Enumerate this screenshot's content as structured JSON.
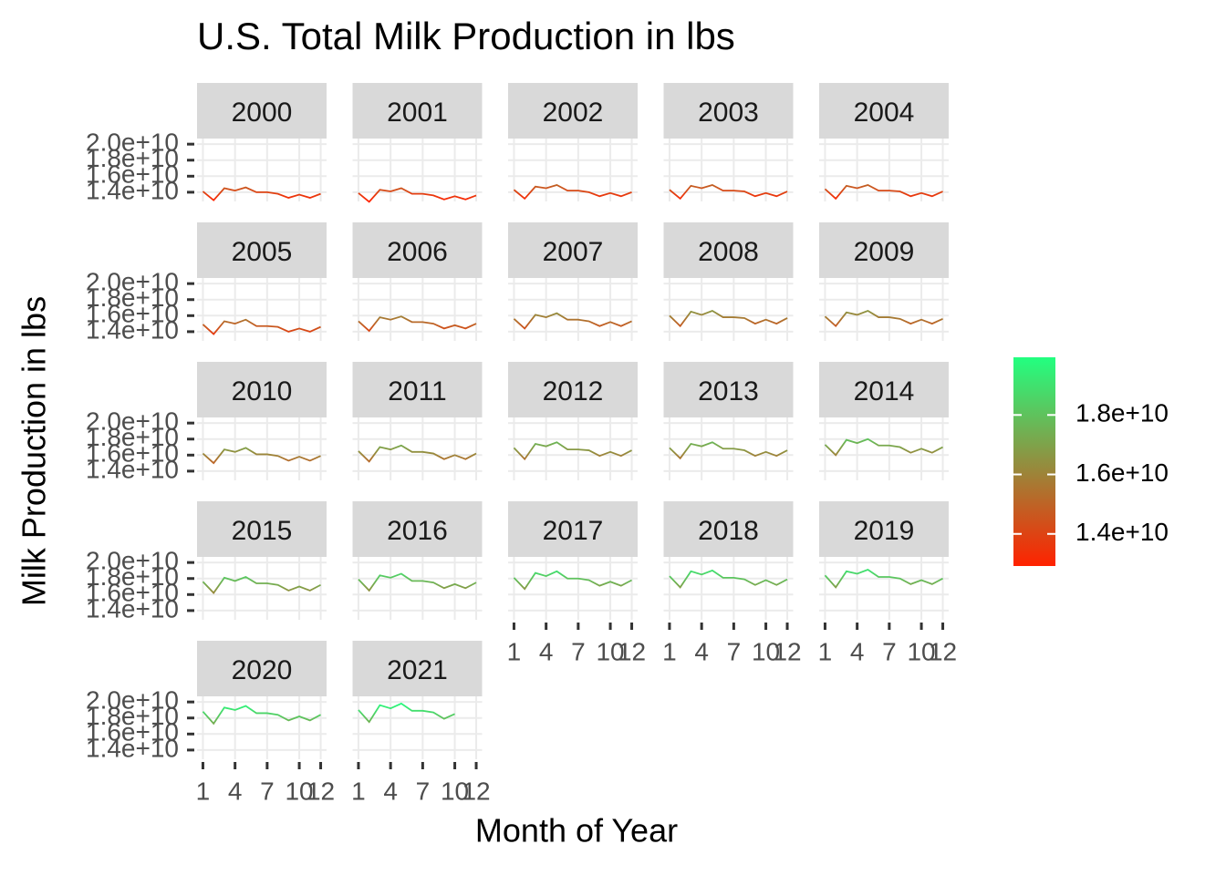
{
  "chart_data": {
    "type": "line",
    "title": "U.S. Total Milk Production in lbs",
    "xlabel": "Month of Year",
    "ylabel": "Milk Production in lbs",
    "x": [
      1,
      2,
      3,
      4,
      5,
      6,
      7,
      8,
      9,
      10,
      11,
      12
    ],
    "xlim": [
      0.45,
      12.55
    ],
    "xticks": [
      1,
      4,
      7,
      10,
      12
    ],
    "ylim": [
      12850000000.0,
      20700000000.0
    ],
    "yticks": [
      {
        "value": 14000000000.0,
        "label": "1.4e+10"
      },
      {
        "value": 16000000000.0,
        "label": "1.6e+10"
      },
      {
        "value": 18000000000.0,
        "label": "1.8e+10"
      },
      {
        "value": 20000000000.0,
        "label": "2.0e+10"
      }
    ],
    "grid": true,
    "colorbar": {
      "lim": [
        12920000000.0,
        19940000000.0
      ],
      "low": "#ff2200",
      "high": "#22ff80",
      "ticks": [
        {
          "value": 14000000000.0,
          "label": "1.4e+10"
        },
        {
          "value": 16000000000.0,
          "label": "1.6e+10"
        },
        {
          "value": 18000000000.0,
          "label": "1.8e+10"
        }
      ]
    },
    "facets": [
      {
        "name": "2000",
        "values": [
          14100000000.0,
          13000000000.0,
          14500000000.0,
          14200000000.0,
          14600000000.0,
          14000000000.0,
          14000000000.0,
          13800000000.0,
          13300000000.0,
          13700000000.0,
          13300000000.0,
          13800000000.0
        ]
      },
      {
        "name": "2001",
        "values": [
          13900000000.0,
          12800000000.0,
          14300000000.0,
          14100000000.0,
          14500000000.0,
          13800000000.0,
          13800000000.0,
          13600000000.0,
          13100000000.0,
          13500000000.0,
          13100000000.0,
          13600000000.0
        ]
      },
      {
        "name": "2002",
        "values": [
          14300000000.0,
          13200000000.0,
          14700000000.0,
          14500000000.0,
          14900000000.0,
          14200000000.0,
          14200000000.0,
          14000000000.0,
          13500000000.0,
          13900000000.0,
          13500000000.0,
          14000000000.0
        ]
      },
      {
        "name": "2003",
        "values": [
          14300000000.0,
          13200000000.0,
          14800000000.0,
          14500000000.0,
          14900000000.0,
          14200000000.0,
          14200000000.0,
          14100000000.0,
          13500000000.0,
          13900000000.0,
          13500000000.0,
          14100000000.0
        ]
      },
      {
        "name": "2004",
        "values": [
          14400000000.0,
          13200000000.0,
          14800000000.0,
          14500000000.0,
          14900000000.0,
          14200000000.0,
          14200000000.0,
          14100000000.0,
          13500000000.0,
          13900000000.0,
          13500000000.0,
          14100000000.0
        ]
      },
      {
        "name": "2005",
        "values": [
          14900000000.0,
          13700000000.0,
          15300000000.0,
          15000000000.0,
          15500000000.0,
          14700000000.0,
          14700000000.0,
          14600000000.0,
          14000000000.0,
          14400000000.0,
          14000000000.0,
          14600000000.0
        ]
      },
      {
        "name": "2006",
        "values": [
          15300000000.0,
          14100000000.0,
          15800000000.0,
          15500000000.0,
          15900000000.0,
          15200000000.0,
          15200000000.0,
          15000000000.0,
          14400000000.0,
          14800000000.0,
          14400000000.0,
          15000000000.0
        ]
      },
      {
        "name": "2007",
        "values": [
          15600000000.0,
          14400000000.0,
          16100000000.0,
          15800000000.0,
          16300000000.0,
          15500000000.0,
          15500000000.0,
          15300000000.0,
          14700000000.0,
          15200000000.0,
          14700000000.0,
          15300000000.0
        ]
      },
      {
        "name": "2008",
        "values": [
          16000000000.0,
          14700000000.0,
          16500000000.0,
          16100000000.0,
          16600000000.0,
          15800000000.0,
          15800000000.0,
          15700000000.0,
          15000000000.0,
          15500000000.0,
          15000000000.0,
          15700000000.0
        ]
      },
      {
        "name": "2009",
        "values": [
          15900000000.0,
          14700000000.0,
          16400000000.0,
          16100000000.0,
          16600000000.0,
          15800000000.0,
          15800000000.0,
          15600000000.0,
          15000000000.0,
          15500000000.0,
          15000000000.0,
          15600000000.0
        ]
      },
      {
        "name": "2010",
        "values": [
          16200000000.0,
          15000000000.0,
          16700000000.0,
          16400000000.0,
          16900000000.0,
          16100000000.0,
          16100000000.0,
          15900000000.0,
          15300000000.0,
          15800000000.0,
          15300000000.0,
          15900000000.0
        ]
      },
      {
        "name": "2011",
        "values": [
          16500000000.0,
          15200000000.0,
          17000000000.0,
          16700000000.0,
          17200000000.0,
          16400000000.0,
          16400000000.0,
          16200000000.0,
          15500000000.0,
          16000000000.0,
          15500000000.0,
          16200000000.0
        ]
      },
      {
        "name": "2012",
        "values": [
          16900000000.0,
          15500000000.0,
          17400000000.0,
          17100000000.0,
          17600000000.0,
          16700000000.0,
          16700000000.0,
          16600000000.0,
          15900000000.0,
          16400000000.0,
          15900000000.0,
          16600000000.0
        ]
      },
      {
        "name": "2013",
        "values": [
          16900000000.0,
          15600000000.0,
          17400000000.0,
          17100000000.0,
          17600000000.0,
          16800000000.0,
          16800000000.0,
          16600000000.0,
          15900000000.0,
          16400000000.0,
          15900000000.0,
          16600000000.0
        ]
      },
      {
        "name": "2014",
        "values": [
          17300000000.0,
          16000000000.0,
          17900000000.0,
          17500000000.0,
          18000000000.0,
          17200000000.0,
          17200000000.0,
          17000000000.0,
          16300000000.0,
          16800000000.0,
          16300000000.0,
          17000000000.0
        ]
      },
      {
        "name": "2015",
        "values": [
          17600000000.0,
          16200000000.0,
          18100000000.0,
          17700000000.0,
          18200000000.0,
          17400000000.0,
          17400000000.0,
          17200000000.0,
          16500000000.0,
          17000000000.0,
          16500000000.0,
          17200000000.0
        ]
      },
      {
        "name": "2016",
        "values": [
          17900000000.0,
          16500000000.0,
          18400000000.0,
          18100000000.0,
          18600000000.0,
          17700000000.0,
          17700000000.0,
          17500000000.0,
          16800000000.0,
          17300000000.0,
          16800000000.0,
          17500000000.0
        ]
      },
      {
        "name": "2017",
        "values": [
          18100000000.0,
          16700000000.0,
          18700000000.0,
          18300000000.0,
          18900000000.0,
          18000000000.0,
          18000000000.0,
          17800000000.0,
          17100000000.0,
          17600000000.0,
          17100000000.0,
          17800000000.0
        ]
      },
      {
        "name": "2018",
        "values": [
          18300000000.0,
          16900000000.0,
          18900000000.0,
          18500000000.0,
          19000000000.0,
          18100000000.0,
          18100000000.0,
          17900000000.0,
          17200000000.0,
          17800000000.0,
          17200000000.0,
          17900000000.0
        ]
      },
      {
        "name": "2019",
        "values": [
          18400000000.0,
          16900000000.0,
          18900000000.0,
          18600000000.0,
          19100000000.0,
          18200000000.0,
          18200000000.0,
          18000000000.0,
          17300000000.0,
          17800000000.0,
          17300000000.0,
          18000000000.0
        ]
      },
      {
        "name": "2020",
        "values": [
          18800000000.0,
          17300000000.0,
          19300000000.0,
          19000000000.0,
          19500000000.0,
          18600000000.0,
          18600000000.0,
          18400000000.0,
          17700000000.0,
          18200000000.0,
          17700000000.0,
          18400000000.0
        ]
      },
      {
        "name": "2021",
        "values": [
          19000000000.0,
          17500000000.0,
          19600000000.0,
          19200000000.0,
          19800000000.0,
          18900000000.0,
          18900000000.0,
          18700000000.0,
          17900000000.0,
          18500000000.0,
          null,
          null
        ]
      }
    ]
  }
}
